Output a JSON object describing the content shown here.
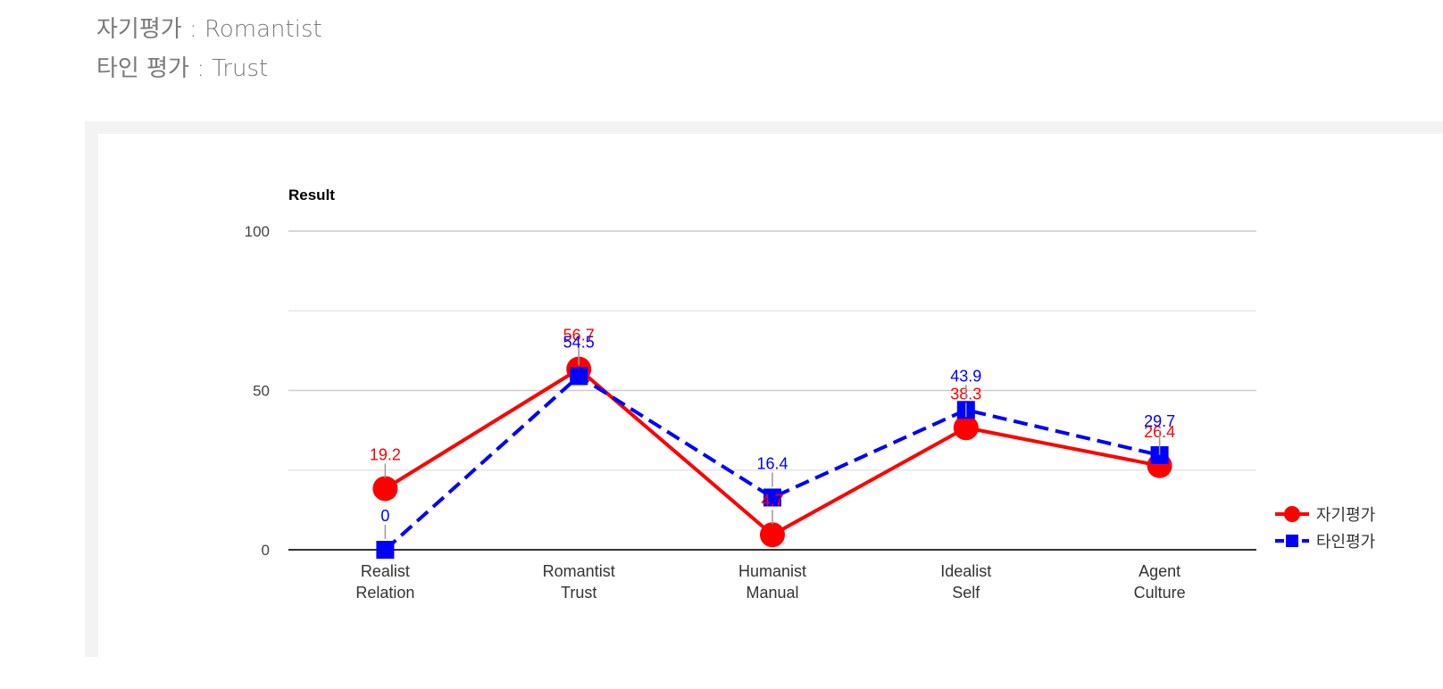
{
  "summary": {
    "self_label": "자기평가",
    "self_value": "Romantist",
    "other_label": "타인 평가",
    "other_value": "Trust",
    "separator": " : "
  },
  "chart_data": {
    "type": "line",
    "title": "Result",
    "categories": [
      [
        "Realist",
        "Relation"
      ],
      [
        "Romantist",
        "Trust"
      ],
      [
        "Humanist",
        "Manual"
      ],
      [
        "Idealist",
        "Self"
      ],
      [
        "Agent",
        "Culture"
      ]
    ],
    "series": [
      {
        "name": "자기평가",
        "color": "#ff0000",
        "marker": "circle",
        "dash": "solid",
        "values": [
          19.2,
          56.7,
          4.7,
          38.3,
          26.4
        ]
      },
      {
        "name": "타인평가",
        "color": "#0000ff",
        "marker": "square",
        "dash": "dashed",
        "values": [
          0,
          54.5,
          16.4,
          43.9,
          29.7
        ]
      }
    ],
    "ylim": [
      0,
      100
    ],
    "yticks": [
      0,
      50,
      100
    ],
    "minor_gridlines": [
      25,
      75
    ],
    "legend_position": "right",
    "xlabel": "",
    "ylabel": ""
  }
}
